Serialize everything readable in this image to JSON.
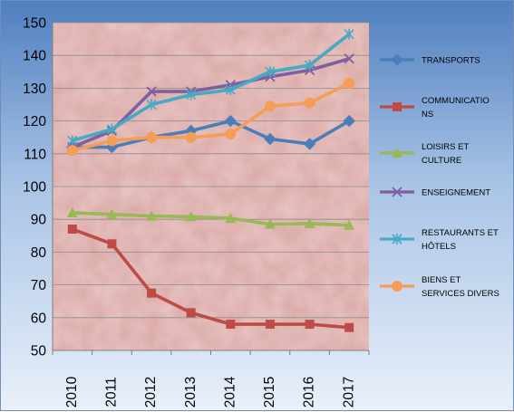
{
  "chart_data": {
    "type": "line",
    "title": "",
    "xlabel": "",
    "ylabel": "",
    "categories": [
      "2010",
      "2011",
      "2012",
      "2013",
      "2014",
      "2015",
      "2016",
      "2017"
    ],
    "ylim": [
      50,
      150
    ],
    "yticks": [
      50,
      60,
      70,
      80,
      90,
      100,
      110,
      120,
      130,
      140,
      150
    ],
    "grid": true,
    "legend_position": "right",
    "plot_background": "#d9a7a4",
    "series": [
      {
        "name": "TRANSPORTS",
        "legend_lines": [
          "TRANSPORTS"
        ],
        "color": "#4a7ebb",
        "marker": "diamond",
        "values": [
          112,
          112,
          115,
          117,
          120,
          114.5,
          113,
          120
        ]
      },
      {
        "name": "COMMUNICATIONS",
        "legend_lines": [
          "COMMUNICATIO",
          "NS"
        ],
        "color": "#be4b48",
        "marker": "square",
        "values": [
          87,
          82.5,
          67.5,
          61.5,
          58,
          58,
          58,
          57
        ]
      },
      {
        "name": "LOISIRS ET CULTURE",
        "legend_lines": [
          "LOISIRS ET",
          "CULTURE"
        ],
        "color": "#98b954",
        "marker": "triangle",
        "values": [
          92,
          91.5,
          91,
          90.8,
          90.3,
          88.5,
          88.7,
          88.2
        ]
      },
      {
        "name": "ENSEIGNEMENT",
        "legend_lines": [
          "ENSEIGNEMENT"
        ],
        "color": "#7d60a0",
        "marker": "x",
        "values": [
          112,
          117,
          129,
          129,
          131,
          133.5,
          135.5,
          139
        ]
      },
      {
        "name": "RESTAURANTS ET HÔTELS",
        "legend_lines": [
          "RESTAURANTS ET",
          "HÔTELS"
        ],
        "color": "#46aac5",
        "marker": "star",
        "values": [
          114,
          117.5,
          125,
          128,
          129.5,
          135,
          137,
          146.5
        ]
      },
      {
        "name": "BIENS ET SERVICES DIVERS",
        "legend_lines": [
          "BIENS ET",
          "SERVICES DIVERS"
        ],
        "color": "#f59d56",
        "marker": "circle",
        "values": [
          111,
          114,
          115,
          115,
          116,
          124.5,
          125.5,
          131.5
        ]
      }
    ]
  }
}
